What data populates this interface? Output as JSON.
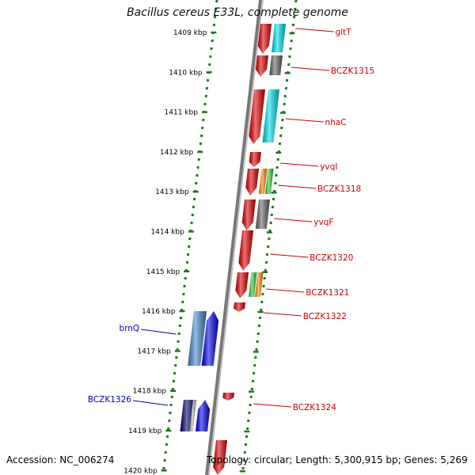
{
  "title": "Bacillus cereus E33L, complete genome",
  "footer": {
    "accession": "Accession: NC_006274",
    "topology": "Topology: circular; Length: 5,300,915 bp; Genes: 5,269"
  },
  "colors": {
    "axis": "#777777",
    "tick": "#1a7a1a",
    "right_label": "#cc0000",
    "left_label": "#0000bb"
  },
  "ticks": [
    {
      "label": "1409 kbp"
    },
    {
      "label": "1410 kbp"
    },
    {
      "label": "1411 kbp"
    },
    {
      "label": "1412 kbp"
    },
    {
      "label": "1413 kbp"
    },
    {
      "label": "1414 kbp"
    },
    {
      "label": "1415 kbp"
    },
    {
      "label": "1416 kbp"
    },
    {
      "label": "1417 kbp"
    },
    {
      "label": "1418 kbp"
    },
    {
      "label": "1419 kbp"
    },
    {
      "label": "1420 kbp"
    }
  ],
  "right_genes": [
    {
      "name": "gltT",
      "color": "#e30000",
      "track2": "#00e0ee"
    },
    {
      "name": "BCZK1315",
      "color": "#e30000",
      "track2": "#666666"
    },
    {
      "name": "nhaC",
      "color": "#e30000",
      "track2": "#00e0ee"
    },
    {
      "name": "yvqI",
      "color": "#e30000",
      "track2": ""
    },
    {
      "name": "BCZK1318",
      "color": "#e30000",
      "track2": "#ff8800",
      "track3": "#33cc33"
    },
    {
      "name": "yvqF",
      "color": "#e30000",
      "track2": "#666666"
    },
    {
      "name": "BCZK1320",
      "color": "#e30000",
      "track2": ""
    },
    {
      "name": "BCZK1321",
      "color": "#e30000",
      "track2": "#33cc33",
      "track3": "#ff8800"
    },
    {
      "name": "BCZK1322",
      "color": "#e30000",
      "track2": ""
    },
    {
      "name": "BCZK1324",
      "color": "#e30000",
      "track2": ""
    },
    {
      "name": "",
      "color": "#e30000",
      "track2": ""
    }
  ],
  "left_genes": [
    {
      "name": "brnQ",
      "color": "#0000ee",
      "track2": "#4488cc"
    },
    {
      "name": "BCZK1326",
      "color": "#0000ee",
      "track2": "#000066"
    }
  ]
}
